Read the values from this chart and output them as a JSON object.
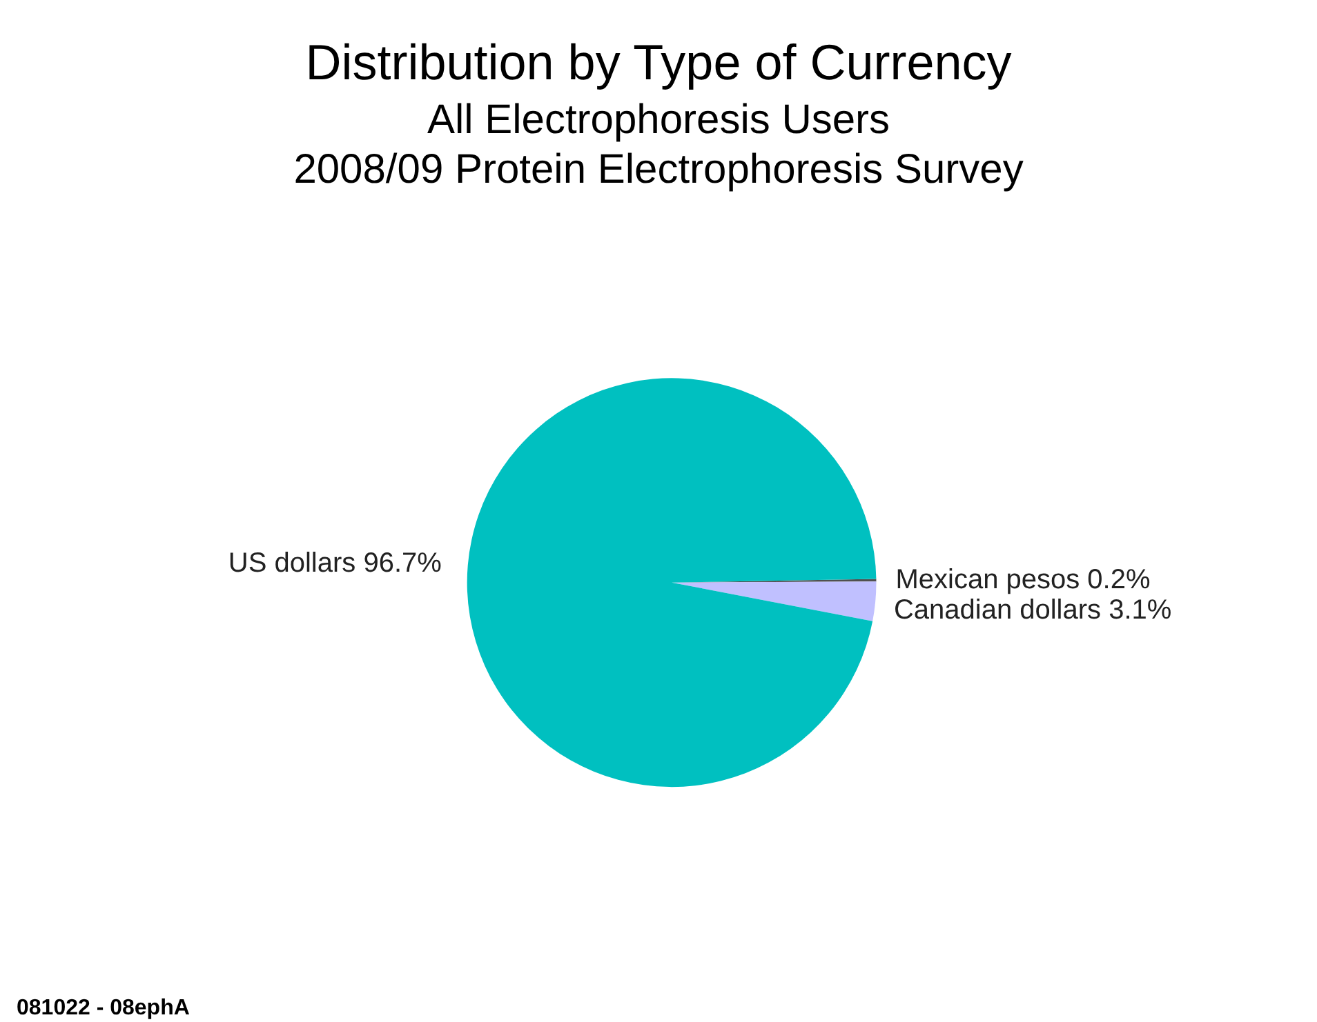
{
  "chart_data": {
    "type": "pie",
    "title": "Distribution by Type of Currency",
    "subtitle": "All Electrophoresis Users\n2008/09 Protein Electrophoresis Survey",
    "categories": [
      "Mexican pesos",
      "Canadian dollars",
      "US dollars"
    ],
    "values": [
      0.2,
      3.1,
      96.7
    ],
    "value_labels": [
      "0.2%",
      "3.1%",
      "96.7%"
    ],
    "colors": [
      "#505050",
      "#c0c0ff",
      "#00c0c0"
    ],
    "annotations": [
      "081022 - 08ephA"
    ],
    "legend": false
  }
}
